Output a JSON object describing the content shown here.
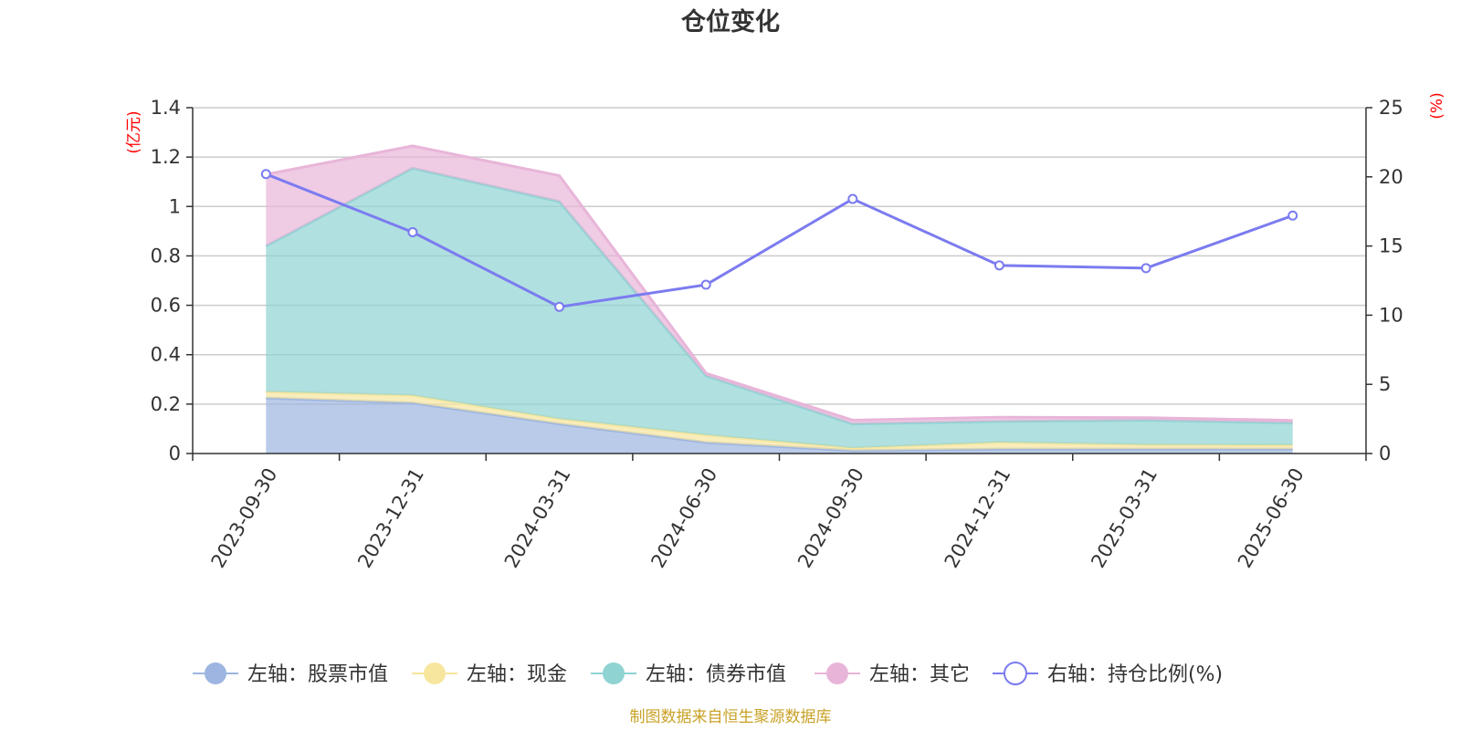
{
  "chart_data": {
    "type": "area",
    "title": "仓位变化",
    "categories": [
      "2023-09-30",
      "2023-12-31",
      "2024-03-31",
      "2024-06-30",
      "2024-09-30",
      "2024-12-31",
      "2025-03-31",
      "2025-06-30"
    ],
    "left_axis": {
      "unit": "(亿元)",
      "ylim": [
        0,
        1.4
      ],
      "ticks": [
        "0",
        "0.2",
        "0.4",
        "0.6",
        "0.8",
        "1",
        "1.2",
        "1.4"
      ]
    },
    "right_axis": {
      "unit": "(%)",
      "ylim": [
        0,
        25
      ],
      "ticks": [
        "0",
        "5",
        "10",
        "15",
        "20",
        "25"
      ]
    },
    "stacked_series": [
      {
        "name": "左轴：股票市值",
        "color": "#9db5e0",
        "values": [
          0.225,
          0.205,
          0.12,
          0.045,
          0.012,
          0.018,
          0.018,
          0.018
        ]
      },
      {
        "name": "左轴：现金",
        "color": "#f7e69e",
        "values": [
          0.025,
          0.03,
          0.02,
          0.03,
          0.01,
          0.027,
          0.017,
          0.016
        ]
      },
      {
        "name": "左轴：债券市值",
        "color": "#8fd3d3",
        "values": [
          0.59,
          0.92,
          0.88,
          0.24,
          0.098,
          0.085,
          0.1,
          0.09
        ]
      },
      {
        "name": "左轴：其它",
        "color": "#e8b5d9",
        "values": [
          0.29,
          0.09,
          0.105,
          0.01,
          0.015,
          0.017,
          0.01,
          0.01
        ]
      }
    ],
    "line_series": {
      "name": "右轴：持仓比例(%)",
      "color": "#7b7bf0",
      "values": [
        20.2,
        16.0,
        10.6,
        12.2,
        18.4,
        13.6,
        13.4,
        17.2
      ]
    },
    "grid": true,
    "legend_position": "bottom"
  },
  "footer": {
    "source": "制图数据来自恒生聚源数据库"
  }
}
